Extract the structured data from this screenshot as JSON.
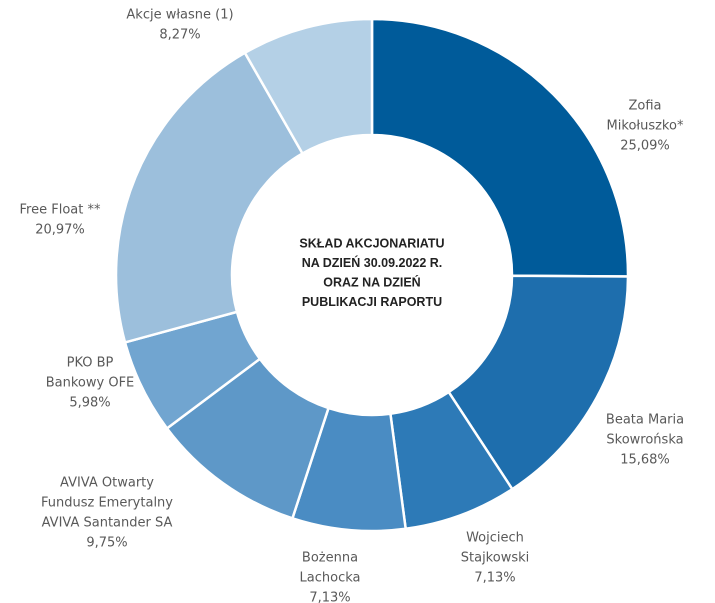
{
  "chart_data": {
    "type": "donut",
    "title": [
      "SKŁAD AKCJONARIATU",
      "NA DZIEŃ 30.09.2022 R.",
      "ORAZ NA DZIEŃ",
      "PUBLIKACJI RAPORTU"
    ],
    "categories": [
      [
        "Zofia",
        "Mikołuszko*"
      ],
      [
        "Beata Maria",
        "Skowrońska"
      ],
      [
        "Wojciech",
        "Stajkowski"
      ],
      [
        "Bożenna",
        "Lachocka"
      ],
      [
        "AVIVA Otwarty",
        "Fundusz Emerytalny",
        "AVIVA Santander SA"
      ],
      [
        "PKO BP",
        "Bankowy OFE"
      ],
      [
        "Free Float **"
      ],
      [
        "Akcje własne (1)"
      ]
    ],
    "values": [
      25.09,
      15.68,
      7.13,
      7.13,
      9.75,
      5.98,
      20.97,
      8.27
    ],
    "value_labels": [
      "25,09%",
      "15,68%",
      "7,13%",
      "7,13%",
      "9,75%",
      "5,98%",
      "20,97%",
      "8,27%"
    ],
    "colors": [
      "#005b9a",
      "#1e6ead",
      "#2d7ab7",
      "#4a8cc3",
      "#5e98c8",
      "#71a5d0",
      "#9cbfdc",
      "#b4d0e6"
    ]
  }
}
